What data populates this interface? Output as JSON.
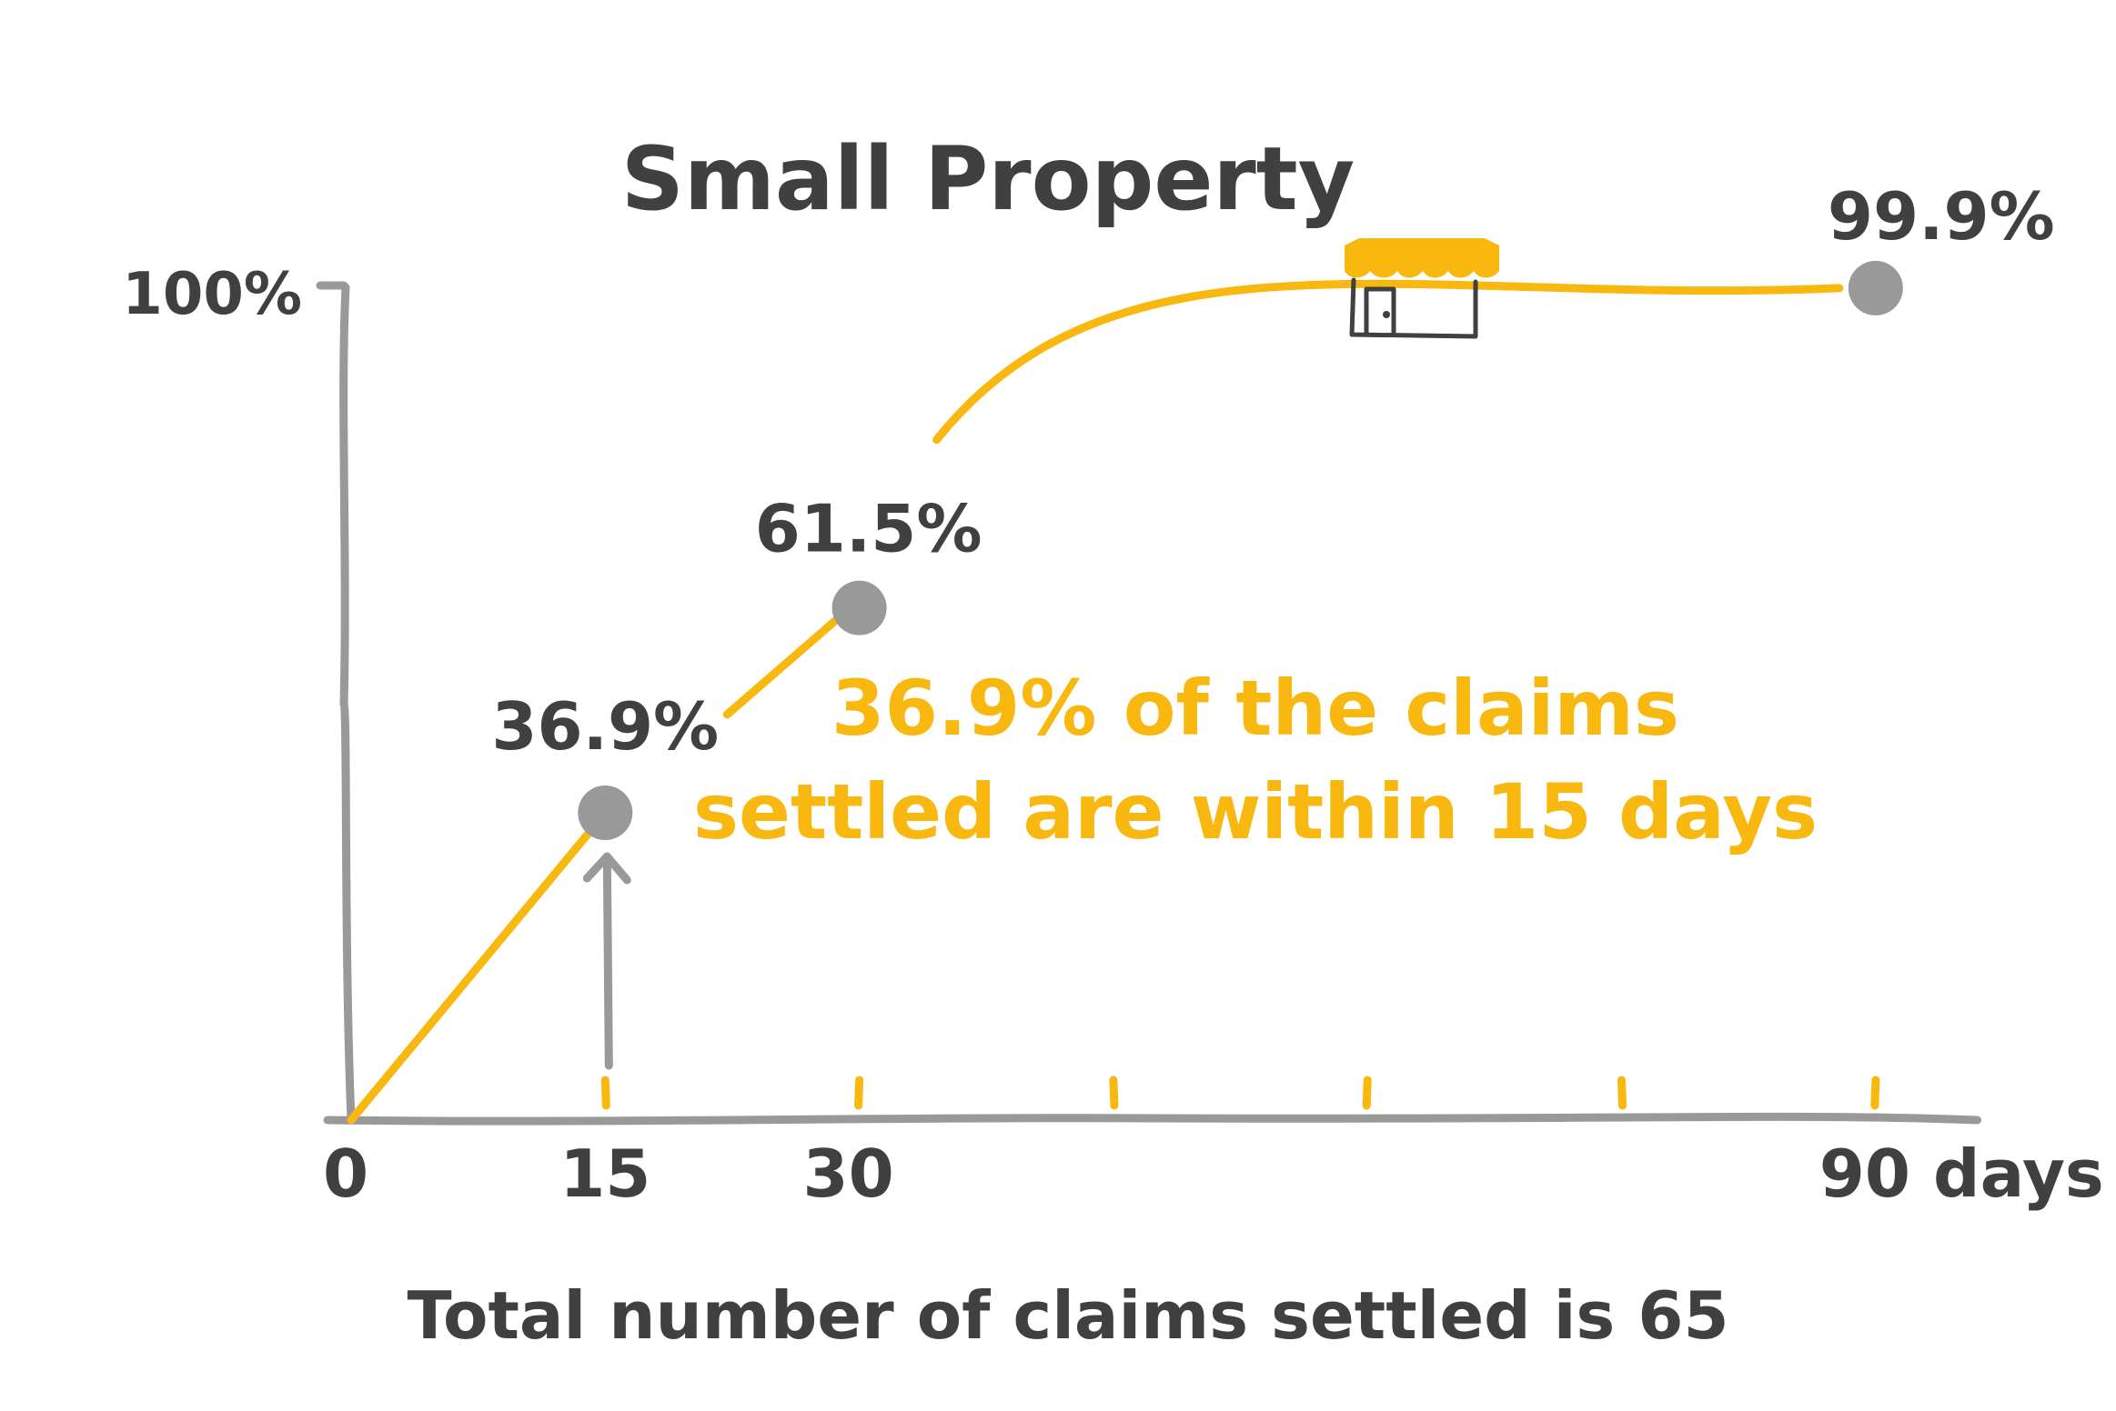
{
  "colors": {
    "accent": "#F8B80F",
    "axis": "#999999",
    "text": "#404040",
    "point": "#999999"
  },
  "icons": {
    "shop": "shop-icon",
    "arrow": "arrow-up-icon"
  },
  "chart_data": {
    "type": "line",
    "title": "Small Property",
    "xlabel": "",
    "ylabel": "",
    "x_unit": "days",
    "xlim": [
      0,
      96
    ],
    "ylim": [
      0,
      100
    ],
    "x_tick_labels": [
      "0",
      "15",
      "30",
      "90 days"
    ],
    "x_tick_marks": [
      15,
      30,
      45,
      60,
      75,
      90
    ],
    "y_tick_labels": [
      "100%"
    ],
    "series": [
      {
        "x": [
          0,
          15,
          30,
          90
        ],
        "values": [
          0,
          36.9,
          61.5,
          99.9
        ],
        "data_labels": [
          "",
          "36.9%",
          "61.5%",
          "99.9%"
        ]
      }
    ],
    "annotation": {
      "lines": [
        "36.9% of the claims",
        "settled are within 15 days"
      ],
      "points_to_x": 15
    },
    "footnote": "Total number of claims settled is 65",
    "grid": false,
    "legend": "none"
  }
}
